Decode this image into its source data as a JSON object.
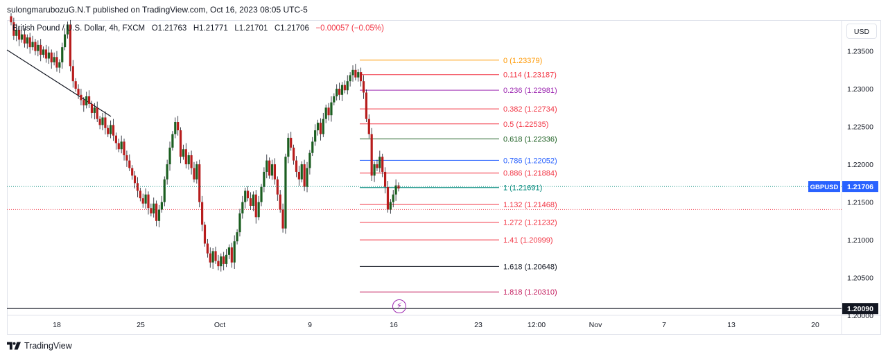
{
  "header": {
    "publisher": "sulongmarubozuG.N.T published on TradingView.com, Oct 16, 2023 08:05 UTC-5"
  },
  "legend": {
    "symbol": "British Pound / U.S. Dollar, 4h, FXCM",
    "open_label": "O",
    "open": "1.21763",
    "high_label": "H",
    "high": "1.21771",
    "low_label": "L",
    "low": "1.21701",
    "close_label": "C",
    "close": "1.21706",
    "change": "−0.00057 (−0.05%)"
  },
  "currency_button": "USD",
  "footer": {
    "brand": "TradingView"
  },
  "colors": {
    "up": "#26a69a",
    "down": "#f23645",
    "up_body": "#1b5e20",
    "down_body": "#b71c1c",
    "fib_0": "#ff9800",
    "fib_0114": "#f23645",
    "fib_0236": "#9c27b0",
    "fib_0382": "#f23645",
    "fib_05": "#f23645",
    "fib_0618": "#1b5e20",
    "fib_0786": "#2962ff",
    "fib_0886": "#f23645",
    "fib_1": "#00897b",
    "fib_1132": "#f23645",
    "fib_1272": "#f23645",
    "fib_141": "#f23645",
    "fib_1618": "#131722",
    "fib_1818": "#c2185b",
    "price_line": "#00897b",
    "support": "#131722"
  },
  "icons": {
    "flash": "lightning-icon",
    "logo": "tradingview-logo-icon"
  },
  "chart_data": {
    "type": "candlestick",
    "title": "British Pound / U.S. Dollar, 4h, FXCM",
    "symbol_tag": "GBPUSD",
    "last_price": "1.21706",
    "support_price": "1.20090",
    "ylim": [
      1.2,
      1.239
    ],
    "y_ticks": [
      "1.23500",
      "1.23000",
      "1.22500",
      "1.22000",
      "1.21500",
      "1.21000",
      "1.20500",
      "1.20000"
    ],
    "x_ticks": [
      "18",
      "25",
      "Oct",
      "9",
      "16",
      "23",
      "12:00",
      "Nov",
      "7",
      "13",
      "20"
    ],
    "fib_levels": [
      {
        "ratio": "0",
        "price": 1.23379,
        "label": "0 (1.23379)",
        "color": "#ff9800"
      },
      {
        "ratio": "0.114",
        "price": 1.23187,
        "label": "0.114 (1.23187)",
        "color": "#f23645"
      },
      {
        "ratio": "0.236",
        "price": 1.22981,
        "label": "0.236 (1.22981)",
        "color": "#9c27b0"
      },
      {
        "ratio": "0.382",
        "price": 1.22734,
        "label": "0.382 (1.22734)",
        "color": "#f23645"
      },
      {
        "ratio": "0.5",
        "price": 1.22535,
        "label": "0.5 (1.22535)",
        "color": "#f23645"
      },
      {
        "ratio": "0.618",
        "price": 1.22336,
        "label": "0.618 (1.22336)",
        "color": "#1b5e20"
      },
      {
        "ratio": "0.786",
        "price": 1.22052,
        "label": "0.786 (1.22052)",
        "color": "#2962ff"
      },
      {
        "ratio": "0.886",
        "price": 1.21884,
        "label": "0.886 (1.21884)",
        "color": "#f23645"
      },
      {
        "ratio": "1",
        "price": 1.21691,
        "label": "1 (1.21691)",
        "color": "#00897b"
      },
      {
        "ratio": "1.132",
        "price": 1.21468,
        "label": "1.132 (1.21468)",
        "color": "#f23645"
      },
      {
        "ratio": "1.272",
        "price": 1.21232,
        "label": "1.272 (1.21232)",
        "color": "#f23645"
      },
      {
        "ratio": "1.41",
        "price": 1.20999,
        "label": "1.41 (1.20999)",
        "color": "#f23645"
      },
      {
        "ratio": "1.618",
        "price": 1.20648,
        "label": "1.618 (1.20648)",
        "color": "#131722"
      },
      {
        "ratio": "1.818",
        "price": 1.2031,
        "label": "1.818 (1.20310)",
        "color": "#c2185b"
      }
    ],
    "trendline": [
      [
        1.234,
        "Sep 12"
      ],
      [
        1.2275,
        "Sep 21"
      ]
    ],
    "candles_close_path": [
      1.2388,
      1.237,
      1.2378,
      1.2365,
      1.2372,
      1.236,
      1.2368,
      1.2355,
      1.2362,
      1.235,
      1.2358,
      1.2345,
      1.2352,
      1.234,
      1.2348,
      1.2335,
      1.2342,
      1.2328,
      1.2335,
      1.2355,
      1.2372,
      1.2385,
      1.233,
      1.231,
      1.23,
      1.2292,
      1.2285,
      1.2278,
      1.229,
      1.228,
      1.2268,
      1.2275,
      1.226,
      1.2252,
      1.2262,
      1.2248,
      1.224,
      1.2252,
      1.2238,
      1.2228,
      1.222,
      1.223,
      1.2212,
      1.2205,
      1.2195,
      1.2185,
      1.2175,
      1.2165,
      1.2155,
      1.2148,
      1.216,
      1.2142,
      1.2135,
      1.2148,
      1.2125,
      1.214,
      1.215,
      1.218,
      1.22,
      1.2222,
      1.224,
      1.2256,
      1.2245,
      1.221,
      1.222,
      1.22,
      1.2212,
      1.2195,
      1.218,
      1.22,
      1.215,
      1.212,
      1.2095,
      1.2082,
      1.207,
      1.2085,
      1.2072,
      1.2065,
      1.2078,
      1.2068,
      1.208,
      1.209,
      1.207,
      1.2098,
      1.211,
      1.2135,
      1.215,
      1.2165,
      1.2155,
      1.2145,
      1.216,
      1.213,
      1.215,
      1.217,
      1.219,
      1.2205,
      1.2185,
      1.22,
      1.218,
      1.216,
      1.214,
      1.2115,
      1.221,
      1.2235,
      1.2222,
      1.2205,
      1.219,
      1.218,
      1.22,
      1.217,
      1.2195,
      1.2215,
      1.223,
      1.2245,
      1.2255,
      1.224,
      1.226,
      1.2275,
      1.2265,
      1.2282,
      1.229,
      1.23,
      1.2292,
      1.2305,
      1.2298,
      1.231,
      1.2318,
      1.2325,
      1.2315,
      1.2322,
      1.231,
      1.2295,
      1.226,
      1.224,
      1.2185,
      1.22,
      1.2195,
      1.221,
      1.219,
      1.217,
      1.214,
      1.215,
      1.216,
      1.2172,
      1.2168
    ]
  }
}
